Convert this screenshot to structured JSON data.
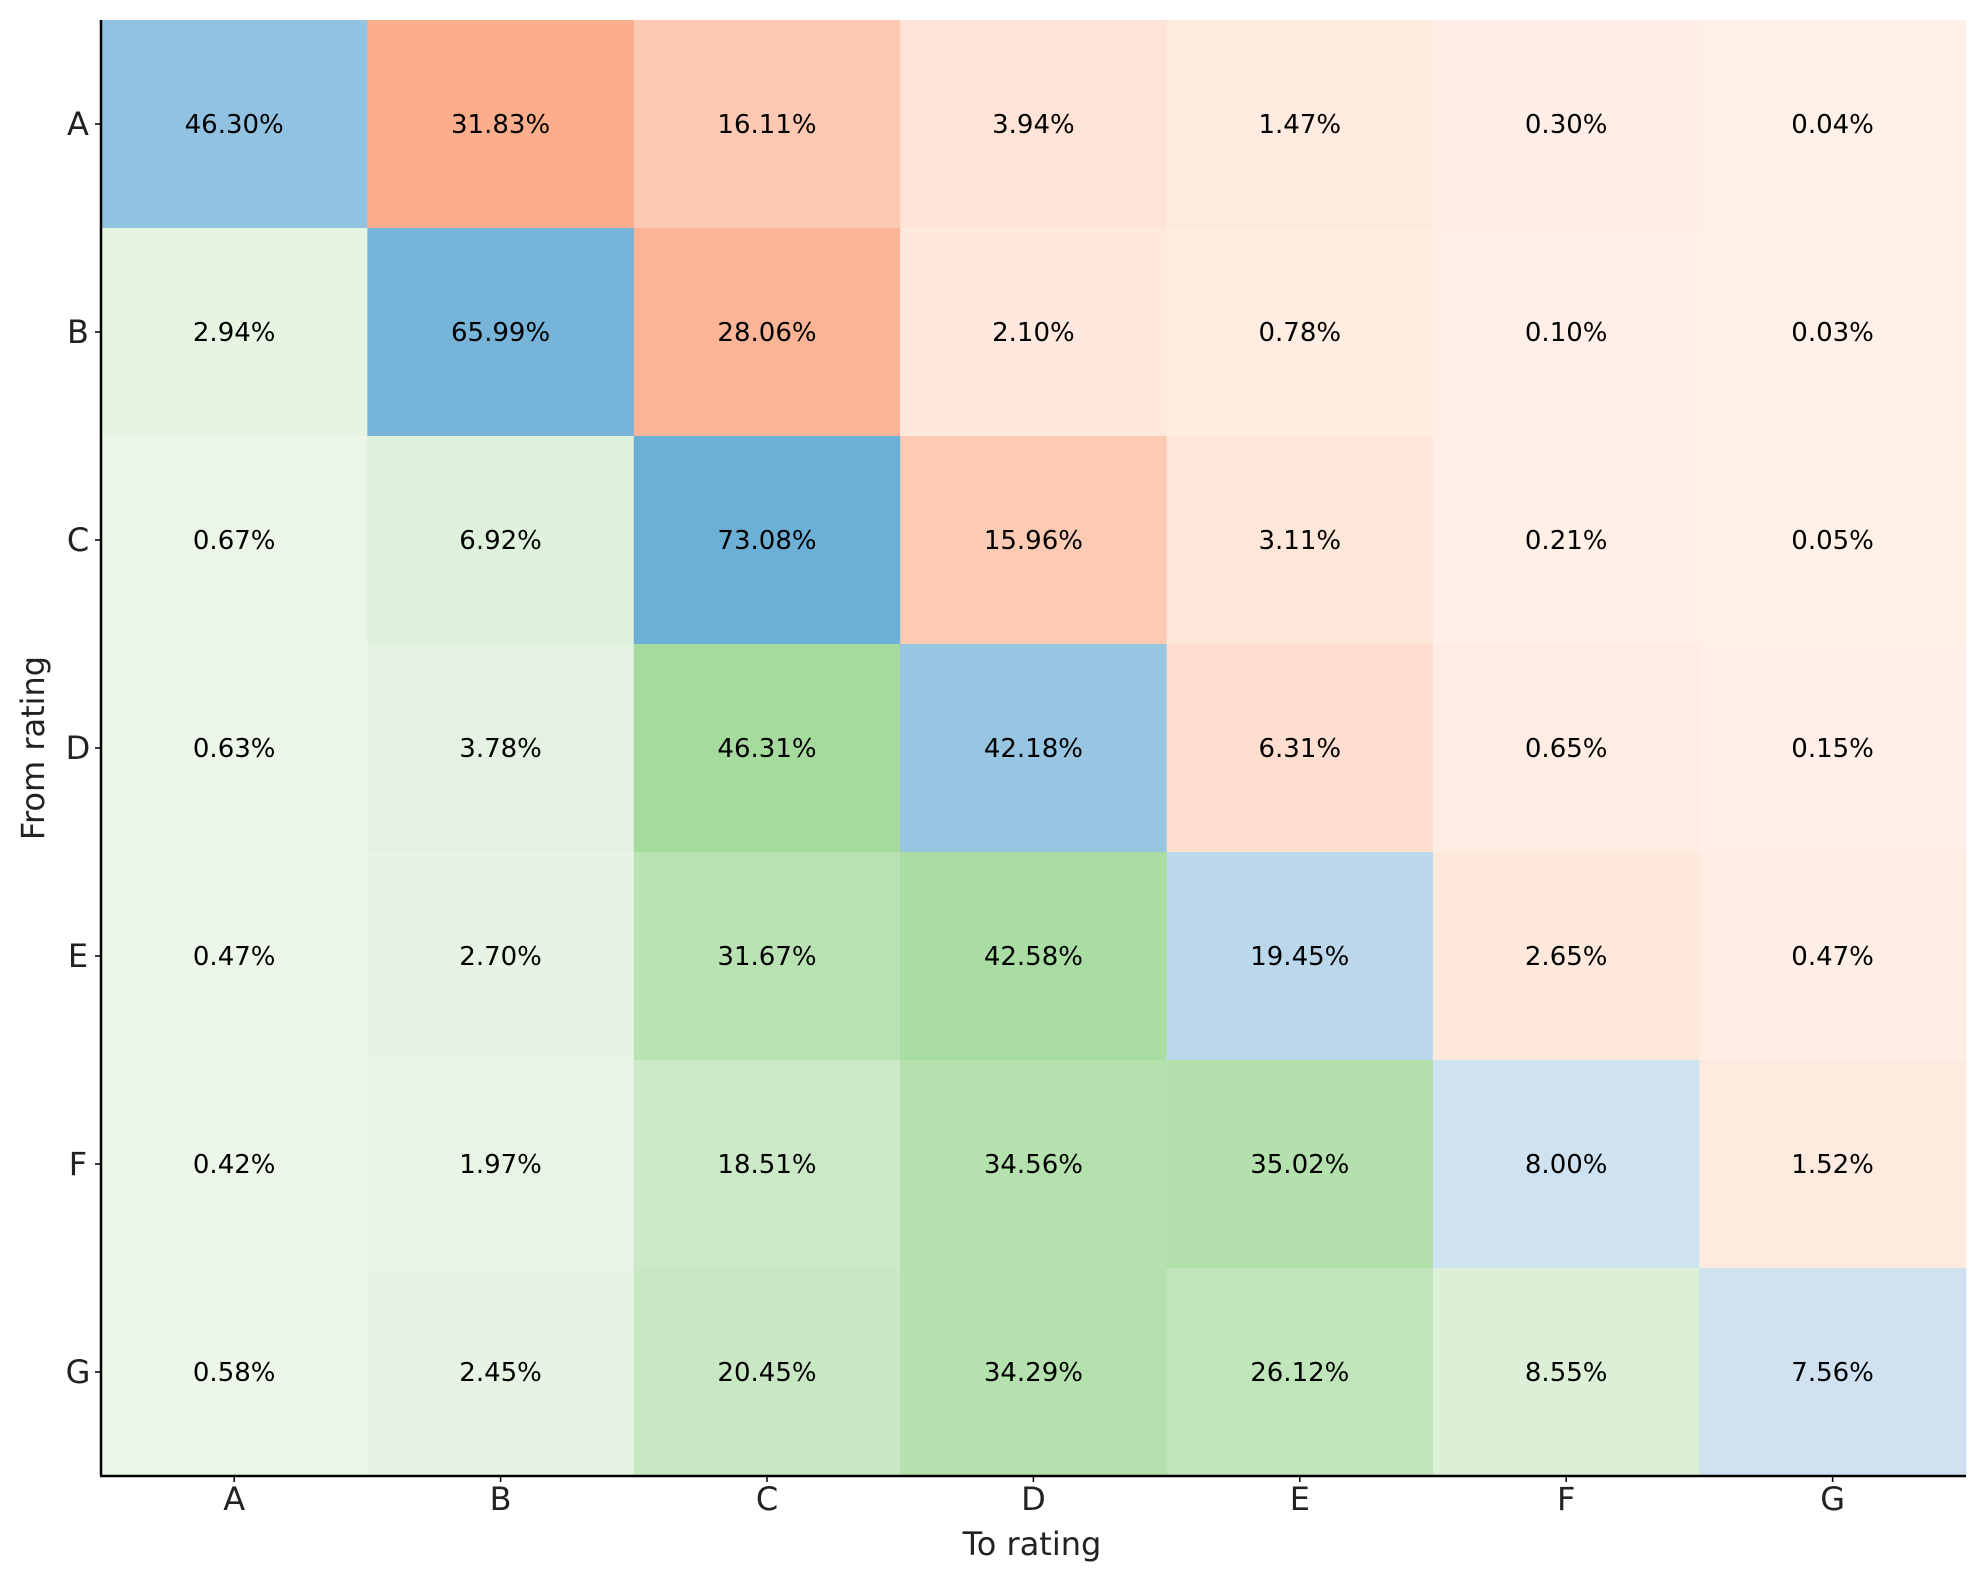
{
  "chart_data": {
    "type": "heatmap",
    "title": "",
    "xlabel": "To rating",
    "ylabel": "From rating",
    "x_categories": [
      "A",
      "B",
      "C",
      "D",
      "E",
      "F",
      "G"
    ],
    "y_categories": [
      "A",
      "B",
      "C",
      "D",
      "E",
      "F",
      "G"
    ],
    "values": [
      [
        46.3,
        31.83,
        16.11,
        3.94,
        1.47,
        0.3,
        0.04
      ],
      [
        2.94,
        65.99,
        28.06,
        2.1,
        0.78,
        0.1,
        0.03
      ],
      [
        0.67,
        6.92,
        73.08,
        15.96,
        3.11,
        0.21,
        0.05
      ],
      [
        0.63,
        3.78,
        46.31,
        42.18,
        6.31,
        0.65,
        0.15
      ],
      [
        0.47,
        2.7,
        31.67,
        42.58,
        19.45,
        2.65,
        0.47
      ],
      [
        0.42,
        1.97,
        18.51,
        34.56,
        35.02,
        8.0,
        1.52
      ],
      [
        0.58,
        2.45,
        20.45,
        34.29,
        26.12,
        8.55,
        7.56
      ]
    ],
    "labels": [
      [
        "46.30%",
        "31.83%",
        "16.11%",
        "3.94%",
        "1.47%",
        "0.30%",
        "0.04%"
      ],
      [
        "2.94%",
        "65.99%",
        "28.06%",
        "2.10%",
        "0.78%",
        "0.10%",
        "0.03%"
      ],
      [
        "0.67%",
        "6.92%",
        "73.08%",
        "15.96%",
        "3.11%",
        "0.21%",
        "0.05%"
      ],
      [
        "0.63%",
        "3.78%",
        "46.31%",
        "42.18%",
        "6.31%",
        "0.65%",
        "0.15%"
      ],
      [
        "0.47%",
        "2.70%",
        "31.67%",
        "42.58%",
        "19.45%",
        "2.65%",
        "0.47%"
      ],
      [
        "0.42%",
        "1.97%",
        "18.51%",
        "34.56%",
        "35.02%",
        "8.00%",
        "1.52%"
      ],
      [
        "0.58%",
        "2.45%",
        "20.45%",
        "34.29%",
        "26.12%",
        "8.55%",
        "7.56%"
      ]
    ],
    "colormaps": {
      "upgrade": "green",
      "stable": "blue",
      "downgrade": "orange"
    },
    "colors": {
      "green_low": "#eef7eb",
      "green_high": "#a6db9e",
      "blue_low": "#e3ecf7",
      "blue_high": "#6aaed6",
      "orange_low": "#fff0e7",
      "orange_high": "#fbad8c",
      "axis": "#000000"
    }
  }
}
